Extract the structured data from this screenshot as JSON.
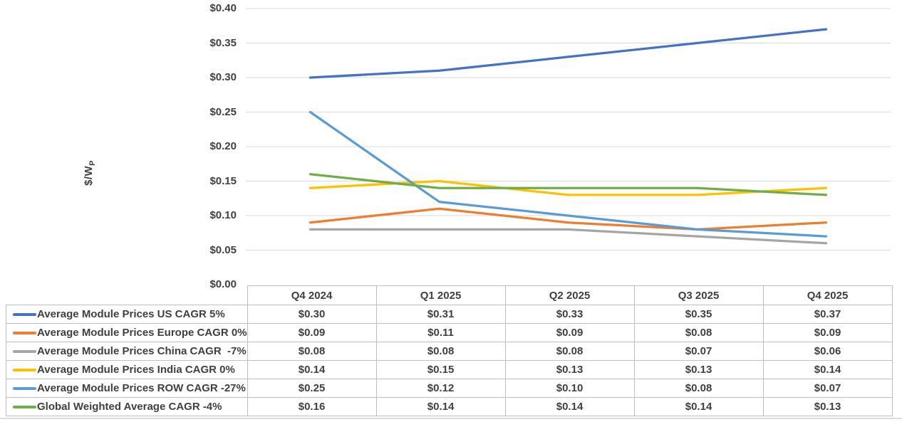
{
  "chart": {
    "y_axis_title": "$/W",
    "y_axis_title_subscript": "P",
    "y_ticks": [
      {
        "label": "$0.40",
        "value": 0.4
      },
      {
        "label": "$0.35",
        "value": 0.35
      },
      {
        "label": "$0.30",
        "value": 0.3
      },
      {
        "label": "$0.25",
        "value": 0.25
      },
      {
        "label": "$0.20",
        "value": 0.2
      },
      {
        "label": "$0.15",
        "value": 0.15
      },
      {
        "label": "$0.10",
        "value": 0.1
      },
      {
        "label": "$0.05",
        "value": 0.05
      },
      {
        "label": "$0.00",
        "value": 0.0
      }
    ],
    "gridline_color": "#d9d9d9",
    "text_color": "#404040",
    "border_color": "#bfbfbf"
  },
  "chart_data": {
    "type": "line",
    "categories": [
      "Q4 2024",
      "Q1 2025",
      "Q2 2025",
      "Q3 2025",
      "Q4 2025"
    ],
    "series": [
      {
        "name": "Average Module Prices US CAGR 5%",
        "color": "#4472c4",
        "values": [
          0.3,
          0.31,
          0.33,
          0.35,
          0.37
        ]
      },
      {
        "name": "Average Module Prices Europe CAGR 0%",
        "color": "#ed7d31",
        "values": [
          0.09,
          0.11,
          0.09,
          0.08,
          0.09
        ]
      },
      {
        "name": "Average Module Prices China CAGR  -7%",
        "color": "#a5a5a5",
        "values": [
          0.08,
          0.08,
          0.08,
          0.07,
          0.06
        ]
      },
      {
        "name": "Average Module Prices India CAGR 0%",
        "color": "#ffc000",
        "values": [
          0.14,
          0.15,
          0.13,
          0.13,
          0.14
        ]
      },
      {
        "name": "Average Module Prices ROW CAGR -27%",
        "color": "#5b9bd5",
        "values": [
          0.25,
          0.12,
          0.1,
          0.08,
          0.07
        ]
      },
      {
        "name": "Global Weighted Average CAGR -4%",
        "color": "#70ad47",
        "values": [
          0.16,
          0.14,
          0.14,
          0.14,
          0.13
        ]
      }
    ],
    "title": "",
    "xlabel": "",
    "ylabel": "$/Wp",
    "ylim": [
      0,
      0.4
    ],
    "ytick_step": 0.05,
    "grid": true,
    "legend_position": "table-left"
  },
  "table": {
    "column_headers": [
      "Q4 2024",
      "Q1 2025",
      "Q2 2025",
      "Q3 2025",
      "Q4 2025"
    ],
    "rows": [
      {
        "label": "Average Module Prices US CAGR 5%",
        "values": [
          "$0.30",
          "$0.31",
          "$0.33",
          "$0.35",
          "$0.37"
        ]
      },
      {
        "label": "Average Module Prices Europe CAGR 0%",
        "values": [
          "$0.09",
          "$0.11",
          "$0.09",
          "$0.08",
          "$0.09"
        ]
      },
      {
        "label": "Average Module Prices China CAGR  -7%",
        "values": [
          "$0.08",
          "$0.08",
          "$0.08",
          "$0.07",
          "$0.06"
        ]
      },
      {
        "label": "Average Module Prices India CAGR 0%",
        "values": [
          "$0.14",
          "$0.15",
          "$0.13",
          "$0.13",
          "$0.14"
        ]
      },
      {
        "label": "Average Module Prices ROW CAGR -27%",
        "values": [
          "$0.25",
          "$0.12",
          "$0.10",
          "$0.08",
          "$0.07"
        ]
      },
      {
        "label": "Global Weighted Average CAGR -4%",
        "values": [
          "$0.16",
          "$0.14",
          "$0.14",
          "$0.14",
          "$0.13"
        ]
      }
    ]
  }
}
